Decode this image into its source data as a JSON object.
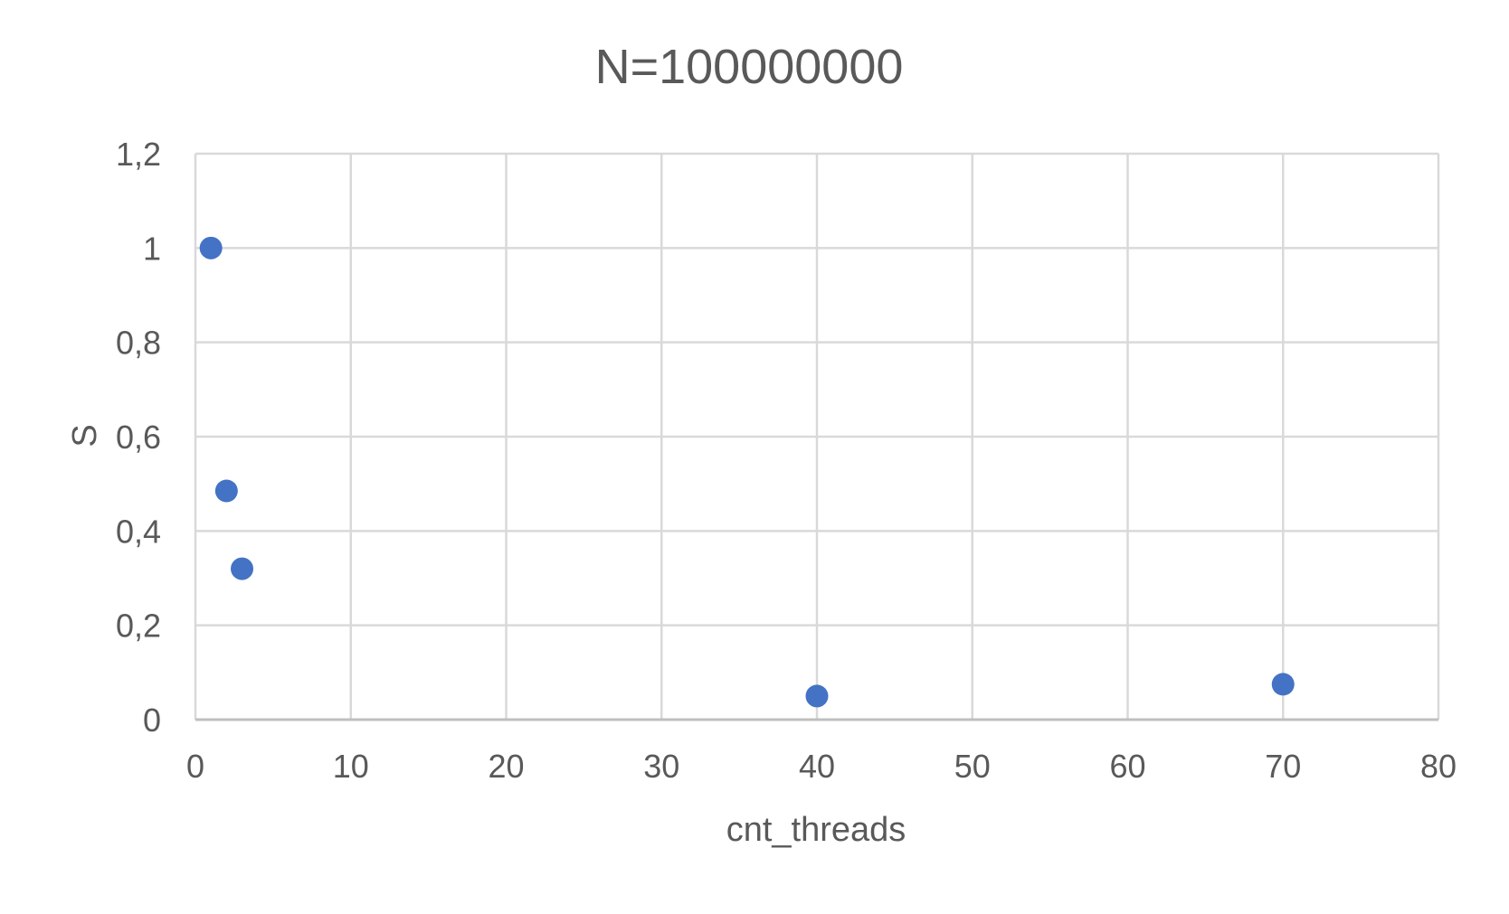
{
  "chart_data": {
    "type": "scatter",
    "title": "N=100000000",
    "xlabel": "cnt_threads",
    "ylabel": "S",
    "xlim": [
      0,
      80
    ],
    "ylim": [
      0,
      1.2
    ],
    "x_ticks": [
      0,
      10,
      20,
      30,
      40,
      50,
      60,
      70,
      80
    ],
    "x_tick_labels": [
      "0",
      "10",
      "20",
      "30",
      "40",
      "50",
      "60",
      "70",
      "80"
    ],
    "y_ticks": [
      0,
      0.2,
      0.4,
      0.6,
      0.8,
      1.0,
      1.2
    ],
    "y_tick_labels": [
      "0",
      "0,2",
      "0,4",
      "0,6",
      "0,8",
      "1",
      "1,2"
    ],
    "grid": true,
    "legend": "none",
    "series": [
      {
        "x": [
          1,
          2,
          3,
          40,
          70
        ],
        "y": [
          1.0,
          0.485,
          0.32,
          0.05,
          0.075
        ]
      }
    ],
    "colors": {
      "marker": "#4472C4",
      "grid": "#d9d9d9",
      "axis": "#bfbfbf",
      "text": "#595959"
    }
  }
}
